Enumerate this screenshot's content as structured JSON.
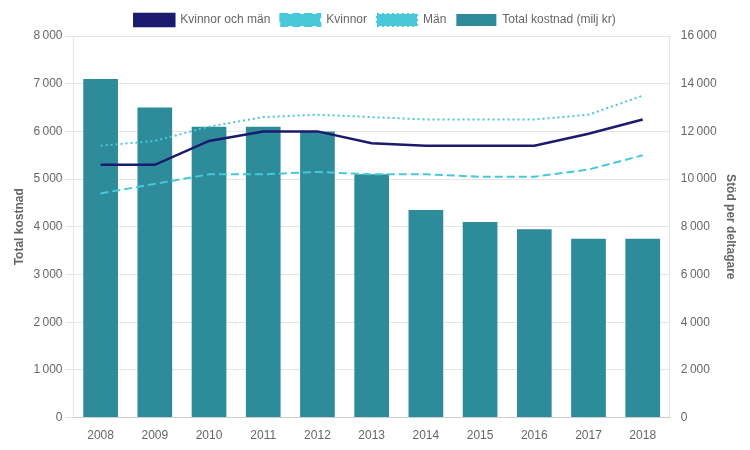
{
  "chart_data": {
    "type": "bar",
    "categories": [
      "2008",
      "2009",
      "2010",
      "2011",
      "2012",
      "2013",
      "2014",
      "2015",
      "2016",
      "2017",
      "2018"
    ],
    "series": [
      {
        "name": "Total kostnad (milj kr)",
        "type": "bar",
        "color": "#2E8B9A",
        "values": [
          7100,
          6500,
          6100,
          6100,
          6000,
          5100,
          4350,
          4100,
          3950,
          3750,
          3750
        ]
      },
      {
        "name": "Kvinnor och män",
        "type": "line",
        "axis": "y2",
        "color": "#1a1a6e",
        "line_style": "solid",
        "marker": "none",
        "values": [
          10600,
          10600,
          11600,
          12000,
          12000,
          11500,
          11400,
          11400,
          11400,
          11900,
          12500
        ]
      },
      {
        "name": "Kvinnor",
        "type": "line",
        "axis": "y2",
        "color": "#48C8D8",
        "line_style": "dashed",
        "marker": "none",
        "values": [
          9400,
          9800,
          10200,
          10200,
          10300,
          10200,
          10200,
          10100,
          10100,
          10400,
          11000
        ]
      },
      {
        "name": "Män",
        "type": "line",
        "axis": "y2",
        "color": "#48C8D8",
        "line_style": "dotted",
        "marker": "none",
        "values": [
          11400,
          11600,
          12200,
          12600,
          12700,
          12600,
          12500,
          12500,
          12500,
          12700,
          13500
        ]
      }
    ],
    "ylabel": "Total kostnad",
    "y2label": "Stöd per deltagare",
    "ylim": [
      0,
      8000
    ],
    "yticks": [
      0,
      {
        "value": 1000,
        "label": "1 000"
      },
      {
        "value": 2000,
        "label": "2 000"
      },
      {
        "value": 3000,
        "label": "3 000"
      },
      {
        "value": 4000,
        "label": "4 000"
      },
      {
        "value": 5000,
        "label": "5 000"
      },
      {
        "value": 6000,
        "label": "6 000"
      },
      {
        "value": 7000,
        "label": "7 000"
      },
      {
        "value": 8000,
        "label": "8 000"
      }
    ],
    "y2lim": [
      0,
      16000
    ],
    "y2ticks": [
      0,
      {
        "value": 2000,
        "label": "2 000"
      },
      {
        "value": 4000,
        "label": "4 000"
      },
      {
        "value": 6000,
        "label": "6 000"
      },
      {
        "value": 8000,
        "label": "8 000"
      },
      {
        "value": 10000,
        "label": "10 000"
      },
      {
        "value": 12000,
        "label": "12 000"
      },
      {
        "value": 14000,
        "label": "14 000"
      },
      {
        "value": 16000,
        "label": "16 000"
      }
    ],
    "grid": true,
    "legend": "top"
  }
}
